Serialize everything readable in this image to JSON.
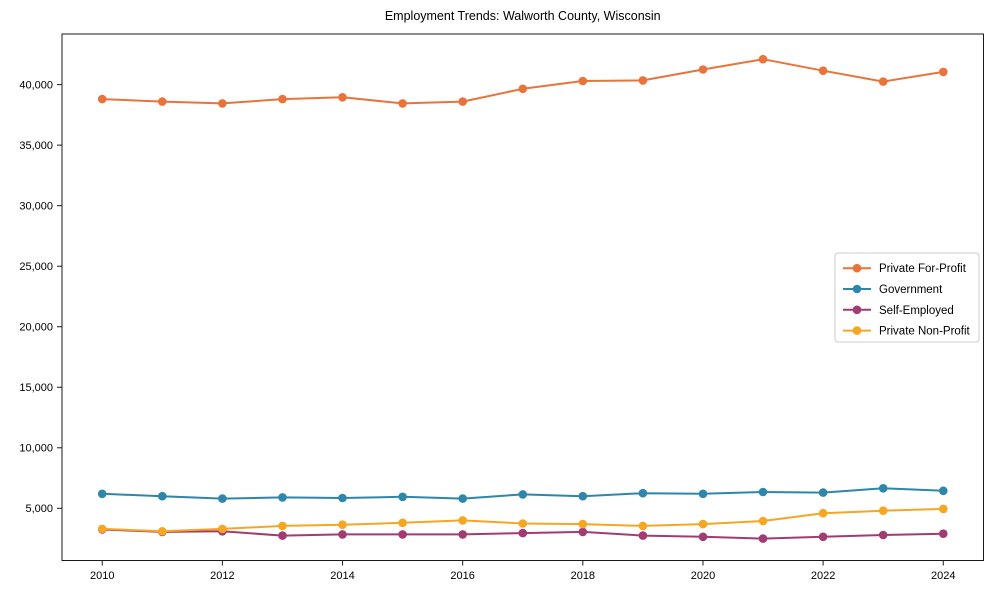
{
  "title": "Employment Trends: Walworth County, Wisconsin",
  "chart_data": {
    "type": "line",
    "title": "Employment Trends: Walworth County, Wisconsin",
    "xlabel": "",
    "ylabel": "",
    "x": [
      2010,
      2011,
      2012,
      2013,
      2014,
      2015,
      2016,
      2017,
      2018,
      2019,
      2020,
      2021,
      2022,
      2023,
      2024
    ],
    "series": [
      {
        "name": "Private For-Profit",
        "color": "#E8743B",
        "values": [
          38800,
          38600,
          38450,
          38800,
          38950,
          38450,
          38600,
          39650,
          40300,
          40350,
          41250,
          42100,
          41150,
          40250,
          41050
        ]
      },
      {
        "name": "Government",
        "color": "#2E86AB",
        "values": [
          6200,
          6000,
          5800,
          5900,
          5850,
          5950,
          5800,
          6150,
          6000,
          6250,
          6200,
          6350,
          6300,
          6650,
          6450
        ]
      },
      {
        "name": "Self-Employed",
        "color": "#A23B72",
        "values": [
          3250,
          3050,
          3100,
          2750,
          2850,
          2850,
          2850,
          2950,
          3050,
          2750,
          2650,
          2500,
          2650,
          2800,
          2900
        ]
      },
      {
        "name": "Private Non-Profit",
        "color": "#F5A623",
        "values": [
          3300,
          3100,
          3300,
          3550,
          3650,
          3800,
          4000,
          3750,
          3700,
          3550,
          3700,
          3950,
          4600,
          4800,
          4950
        ]
      }
    ],
    "xticks": [
      2010,
      2012,
      2014,
      2016,
      2018,
      2020,
      2022,
      2024
    ],
    "xtick_labels": [
      "2010",
      "2012",
      "2014",
      "2016",
      "2018",
      "2020",
      "2022",
      "2024"
    ],
    "yticks": [
      5000,
      10000,
      15000,
      20000,
      25000,
      30000,
      35000,
      40000
    ],
    "ytick_labels": [
      "5,000",
      "10,000",
      "15,000",
      "20,000",
      "25,000",
      "30,000",
      "35,000",
      "40,000"
    ],
    "xlim": [
      2009.33,
      2024.67
    ],
    "ylim": [
      690,
      44180
    ],
    "grid": false,
    "legend_position": "center right",
    "legend_labels": [
      "Private For-Profit",
      "Government",
      "Self-Employed",
      "Private Non-Profit"
    ]
  },
  "colors": {
    "background": "#ffffff",
    "axis": "#1a1a1a",
    "text": "#000000",
    "legend_border": "#cccccc",
    "legend_background": "#ffffff"
  }
}
